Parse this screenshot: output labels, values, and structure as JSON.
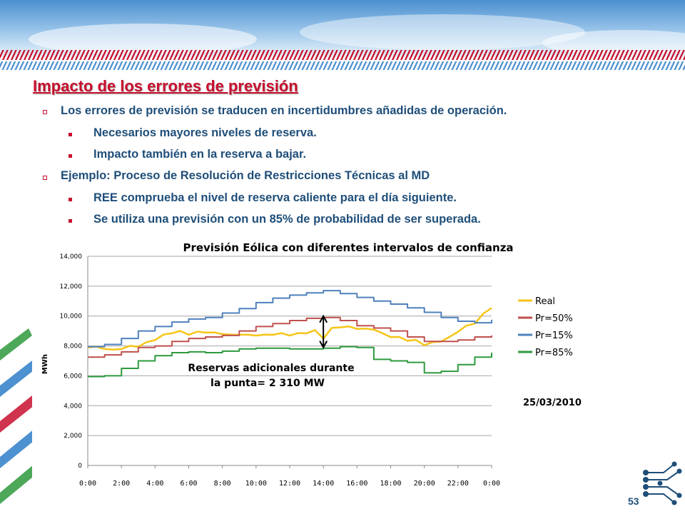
{
  "slide": {
    "title": "Impacto de los errores de previsión",
    "bullets": [
      {
        "level": 1,
        "text": "Los errores de previsión se traducen en incertidumbres añadidas de operación."
      },
      {
        "level": 2,
        "text": "Necesarios mayores niveles de reserva."
      },
      {
        "level": 2,
        "text": "Impacto también en la reserva a bajar."
      },
      {
        "level": 1,
        "text": "Ejemplo: Proceso de Resolución de Restricciones Técnicas al MD"
      },
      {
        "level": 2,
        "text": "REE comprueba el nivel de reserva caliente para el día siguiente."
      },
      {
        "level": 2,
        "text": "Se utiliza una previsión con un 85% de probabilidad de ser superada."
      }
    ],
    "page_number": "53",
    "colors": {
      "title": "#c8102e",
      "text": "#1f4e79"
    }
  },
  "chart_data": {
    "type": "line",
    "title": "Previsión Eólica con diferentes intervalos de confianza",
    "ylabel": "MWh",
    "xlabel": "",
    "ylim": [
      0,
      14000
    ],
    "yticks": [
      0,
      2000,
      4000,
      6000,
      8000,
      10000,
      12000,
      14000
    ],
    "ytick_labels": [
      "0",
      "2,000",
      "4,000",
      "6,000",
      "8,000",
      "10,000",
      "12,000",
      "14,000"
    ],
    "x_ticks": [
      "0:00",
      "2:00",
      "4:00",
      "6:00",
      "8:00",
      "10:00",
      "12:00",
      "14:00",
      "16:00",
      "18:00",
      "20:00",
      "22:00",
      "0:00"
    ],
    "grid": "horizontal",
    "legend_position": "right",
    "date_label": "25/03/2010",
    "annotation": {
      "line1": "Reservas adicionales durante",
      "line2": "la punta= 2 310 MW",
      "hour": 14,
      "from": 7900,
      "to": 10000
    },
    "series": [
      {
        "name": "Real",
        "color": "#f5c518",
        "hours": [
          0,
          0.5,
          1,
          1.5,
          2,
          2.5,
          3,
          3.5,
          4,
          4.5,
          5,
          5.5,
          6,
          6.5,
          7,
          7.5,
          8,
          8.5,
          9,
          9.5,
          10,
          10.5,
          11,
          11.5,
          12,
          12.5,
          13,
          13.5,
          14,
          14.5,
          15,
          15.5,
          16,
          16.5,
          17,
          17.5,
          18,
          18.5,
          19,
          19.5,
          20,
          20.5,
          21,
          21.5,
          22,
          22.5,
          23,
          23.5,
          24
        ],
        "values": [
          7950,
          7900,
          7850,
          7700,
          7850,
          7950,
          8000,
          8200,
          8450,
          8700,
          8900,
          8950,
          8800,
          8900,
          8950,
          8850,
          8850,
          8700,
          8800,
          8700,
          8750,
          8700,
          8800,
          8800,
          8750,
          8800,
          8900,
          9000,
          8550,
          9150,
          9300,
          9250,
          9200,
          9100,
          9150,
          8800,
          8650,
          8550,
          8400,
          8350,
          8100,
          8200,
          8350,
          8550,
          9000,
          9300,
          9550,
          10100,
          10600
        ]
      },
      {
        "name": "Pr=50%",
        "color": "#c0504d",
        "hours": [
          0,
          1,
          2,
          3,
          4,
          5,
          6,
          7,
          8,
          9,
          10,
          11,
          12,
          13,
          14,
          15,
          16,
          17,
          18,
          19,
          20,
          21,
          22,
          23,
          24
        ],
        "values": [
          7250,
          7400,
          7600,
          7900,
          8000,
          8300,
          8500,
          8600,
          8700,
          9000,
          9300,
          9500,
          9700,
          9850,
          9900,
          9700,
          9350,
          9200,
          9000,
          8600,
          8300,
          8300,
          8400,
          8600,
          8700
        ]
      },
      {
        "name": "Pr=15%",
        "color": "#4f81bd",
        "hours": [
          0,
          1,
          2,
          3,
          4,
          5,
          6,
          7,
          8,
          9,
          10,
          11,
          12,
          13,
          14,
          15,
          16,
          17,
          18,
          19,
          20,
          21,
          22,
          23,
          24
        ],
        "values": [
          7950,
          8100,
          8500,
          9000,
          9300,
          9600,
          9800,
          9900,
          10200,
          10500,
          10900,
          11200,
          11400,
          11550,
          11700,
          11500,
          11250,
          11000,
          10800,
          10550,
          10250,
          9900,
          9650,
          9550,
          9750
        ]
      },
      {
        "name": "Pr=85%",
        "color": "#2e9a3e",
        "hours": [
          0,
          1,
          2,
          3,
          4,
          5,
          6,
          7,
          8,
          9,
          10,
          11,
          12,
          13,
          14,
          15,
          16,
          17,
          18,
          19,
          20,
          21,
          22,
          23,
          24
        ],
        "values": [
          5950,
          6000,
          6500,
          7000,
          7350,
          7550,
          7600,
          7550,
          7650,
          7800,
          7850,
          7850,
          7800,
          7800,
          7850,
          7950,
          7900,
          7100,
          7000,
          6900,
          6200,
          6300,
          6750,
          7250,
          7550
        ]
      }
    ]
  }
}
